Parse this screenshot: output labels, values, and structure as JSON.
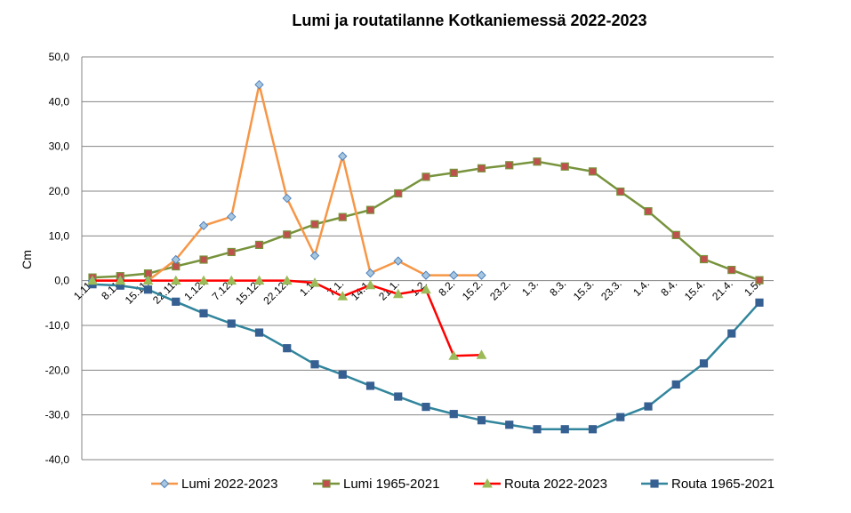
{
  "chart_data": {
    "type": "line",
    "title": "Lumi ja routatilanne Kotkaniemessä 2022-2023",
    "ylabel": "Cm",
    "xlabel": "",
    "ylim": [
      -40,
      50
    ],
    "y_ticks": [
      "50,0",
      "40,0",
      "30,0",
      "20,0",
      "10,0",
      "0,0",
      "-10,0",
      "-20,0",
      "-30,0",
      "-40,0"
    ],
    "y_tick_values": [
      50,
      40,
      30,
      20,
      10,
      0,
      -10,
      -20,
      -30,
      -40
    ],
    "grid": "horizontal",
    "legend": "bottom",
    "categories": [
      "1.11.",
      "8.11.",
      "15.11.",
      "22.11.",
      "1.12.",
      "7.12.",
      "15.12.",
      "22.12.",
      "1.1.",
      "7.1.",
      "14.1.",
      "21.1.",
      "1.2.",
      "8.2.",
      "15.2.",
      "23.2.",
      "1.3.",
      "8.3.",
      "15.3.",
      "23.3.",
      "1.4.",
      "8.4.",
      "15.4.",
      "21.4.",
      "1.5."
    ],
    "series": [
      {
        "name": "Lumi 2022-2023",
        "color": "#F79646",
        "marker": "diamond",
        "marker_fill": "#A7C7DF",
        "marker_stroke": "#4F81BD",
        "values": [
          0,
          0,
          0,
          4.7,
          12.3,
          14.3,
          43.8,
          18.4,
          5.6,
          27.8,
          1.7,
          4.4,
          1.2,
          1.2,
          1.2,
          null,
          null,
          null,
          null,
          null,
          null,
          null,
          null,
          null,
          null
        ]
      },
      {
        "name": "Lumi 1965-2021",
        "color": "#77933C",
        "marker": "square",
        "marker_fill": "#C0504D",
        "marker_stroke": "#77933C",
        "values": [
          0.7,
          1.0,
          1.6,
          3.2,
          4.7,
          6.4,
          8.0,
          10.3,
          12.6,
          14.2,
          15.8,
          19.5,
          23.2,
          24.1,
          25.1,
          25.8,
          26.6,
          25.5,
          24.4,
          19.9,
          15.5,
          10.2,
          4.8,
          2.4,
          0.1
        ]
      },
      {
        "name": "Routa 2022-2023",
        "color": "#FF0000",
        "marker": "triangle",
        "marker_fill": "#9BBB59",
        "marker_stroke": "#9BBB59",
        "values": [
          0,
          0,
          0,
          0,
          0,
          0,
          0,
          0,
          -0.5,
          -3.5,
          -1.0,
          -3.0,
          -2.0,
          -16.8,
          -16.6,
          null,
          null,
          null,
          null,
          null,
          null,
          null,
          null,
          null,
          null
        ]
      },
      {
        "name": "Routa 1965-2021",
        "color": "#31859C",
        "marker": "square",
        "marker_fill": "#376092",
        "marker_stroke": "#376092",
        "values": [
          -0.8,
          -1.1,
          -2.0,
          -4.7,
          -7.3,
          -9.6,
          -11.6,
          -15.1,
          -18.7,
          -21.0,
          -23.5,
          -25.9,
          -28.2,
          -29.8,
          -31.2,
          -32.2,
          -33.2,
          -33.2,
          -33.2,
          -30.5,
          -28.1,
          -23.2,
          -18.5,
          -11.8,
          -4.9
        ]
      }
    ]
  }
}
